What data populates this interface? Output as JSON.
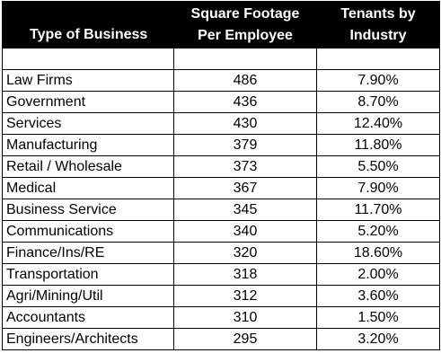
{
  "headers": {
    "type": "Type of Business",
    "sqft_line1": "Square Footage",
    "sqft_line2": "Per Employee",
    "tenants_line1": "Tenants by",
    "tenants_line2": "Industry"
  },
  "rows": [
    {
      "type": "Law Firms",
      "sqft": "486",
      "pct": "7.90%"
    },
    {
      "type": "Government",
      "sqft": "436",
      "pct": "8.70%"
    },
    {
      "type": "Services",
      "sqft": "430",
      "pct": "12.40%"
    },
    {
      "type": "Manufacturing",
      "sqft": "379",
      "pct": "11.80%"
    },
    {
      "type": "Retail / Wholesale",
      "sqft": "373",
      "pct": "5.50%"
    },
    {
      "type": "Medical",
      "sqft": "367",
      "pct": "7.90%"
    },
    {
      "type": "Business Service",
      "sqft": "345",
      "pct": "11.70%"
    },
    {
      "type": "Communications",
      "sqft": "340",
      "pct": "5.20%"
    },
    {
      "type": "Finance/Ins/RE",
      "sqft": "320",
      "pct": "18.60%"
    },
    {
      "type": "Transportation",
      "sqft": "318",
      "pct": "2.00%"
    },
    {
      "type": "Agri/Mining/Util",
      "sqft": "312",
      "pct": "3.60%"
    },
    {
      "type": "Accountants",
      "sqft": "310",
      "pct": "1.50%"
    },
    {
      "type": "Engineers/Architects",
      "sqft": "295",
      "pct": "3.20%"
    }
  ]
}
